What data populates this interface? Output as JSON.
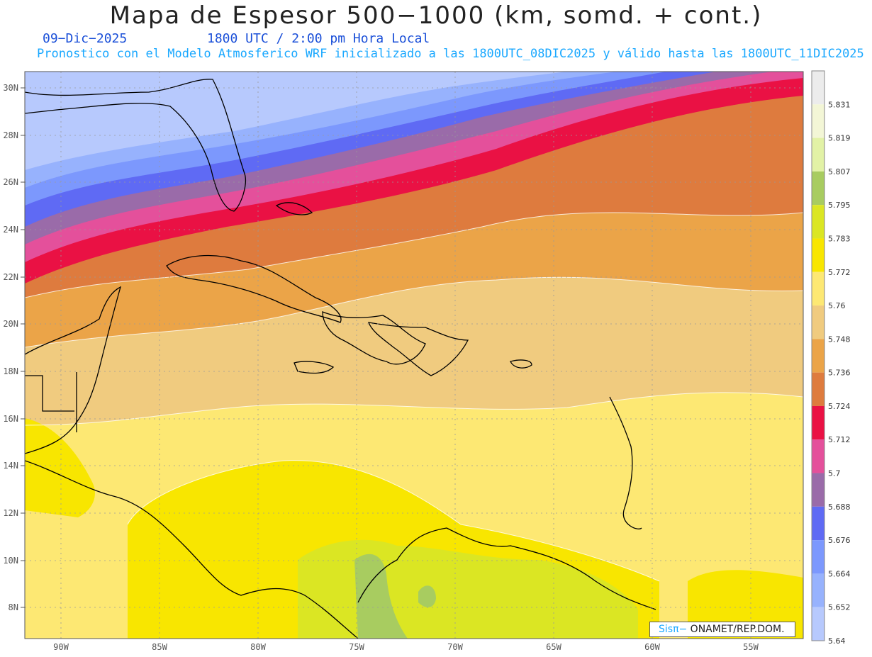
{
  "header": {
    "title": "Mapa de Espesor 500−1000 (km, somd. + cont.)",
    "date": "09−Dic−2025",
    "time": "1800 UTC / 2:00 pm Hora Local",
    "subtitle": "Pronostico con el Modelo Atmosferico WRF inicializado a las 1800UTC_08DIC2025 y válido hasta las  1800UTC_11DIC2025"
  },
  "map": {
    "lat_labels": [
      "30N",
      "28N",
      "26N",
      "24N",
      "22N",
      "20N",
      "18N",
      "16N",
      "14N",
      "12N",
      "10N",
      "8N"
    ],
    "lon_labels": [
      "90W",
      "85W",
      "80W",
      "75W",
      "70W",
      "65W",
      "60W",
      "55W"
    ],
    "lat_range": [
      7,
      30.5
    ],
    "lon_range": [
      -91.5,
      -52.5
    ],
    "gridlines": true
  },
  "colorbar": {
    "levels": [
      "5.831",
      "5.819",
      "5.807",
      "5.795",
      "5.783",
      "5.772",
      "5.76",
      "5.748",
      "5.736",
      "5.724",
      "5.712",
      "5.7",
      "5.688",
      "5.676",
      "5.664",
      "5.652",
      "5.64"
    ],
    "colors": [
      "#ececec",
      "#f3f6d6",
      "#e2f2a6",
      "#a8cc60",
      "#dbe623",
      "#f8e600",
      "#fde873",
      "#f0cb7f",
      "#eba448",
      "#de7b3e",
      "#ea1144",
      "#e4509b",
      "#9a6ba9",
      "#5f6af4",
      "#7c98fd",
      "#97b2fd",
      "#b7c9fd"
    ]
  },
  "credit": {
    "brand": "Sisπ−",
    "org": " ONAMET/REP.DOM."
  }
}
